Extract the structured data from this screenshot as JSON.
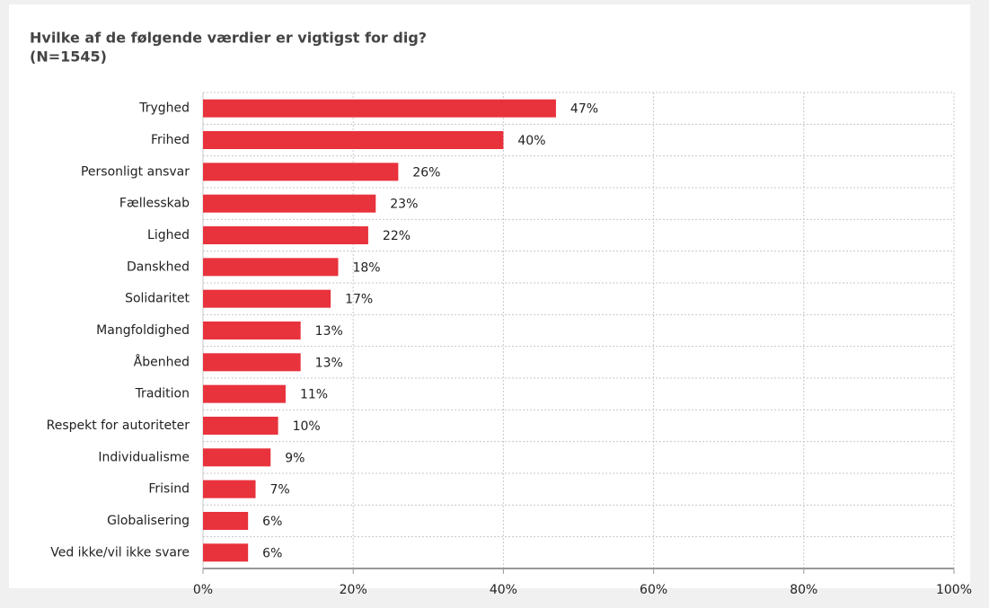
{
  "chart_data": {
    "type": "bar",
    "orientation": "horizontal",
    "title": "Hvilke af de følgende værdier er vigtigst for dig?",
    "subtitle": "(N=1545)",
    "categories": [
      "Tryghed",
      "Frihed",
      "Personligt ansvar",
      "Fællesskab",
      "Lighed",
      "Danskhed",
      "Solidaritet",
      "Mangfoldighed",
      "Åbenhed",
      "Tradition",
      "Respekt for autoriteter",
      "Individualisme",
      "Frisind",
      "Globalisering",
      "Ved ikke/vil ikke svare"
    ],
    "values": [
      47,
      40,
      26,
      23,
      22,
      18,
      17,
      13,
      13,
      11,
      10,
      9,
      7,
      6,
      6
    ],
    "value_labels": [
      "47%",
      "40%",
      "26%",
      "23%",
      "22%",
      "18%",
      "17%",
      "13%",
      "13%",
      "11%",
      "10%",
      "9%",
      "7%",
      "6%",
      "6%"
    ],
    "color": "#e8323c",
    "xlim": [
      0,
      100
    ],
    "xticks": [
      {
        "value": 0,
        "label": "0%"
      },
      {
        "value": 20,
        "label": "20%"
      },
      {
        "value": 40,
        "label": "40%"
      },
      {
        "value": 60,
        "label": "60%"
      },
      {
        "value": 80,
        "label": "80%"
      },
      {
        "value": 100,
        "label": "100%"
      }
    ],
    "grid": true
  }
}
